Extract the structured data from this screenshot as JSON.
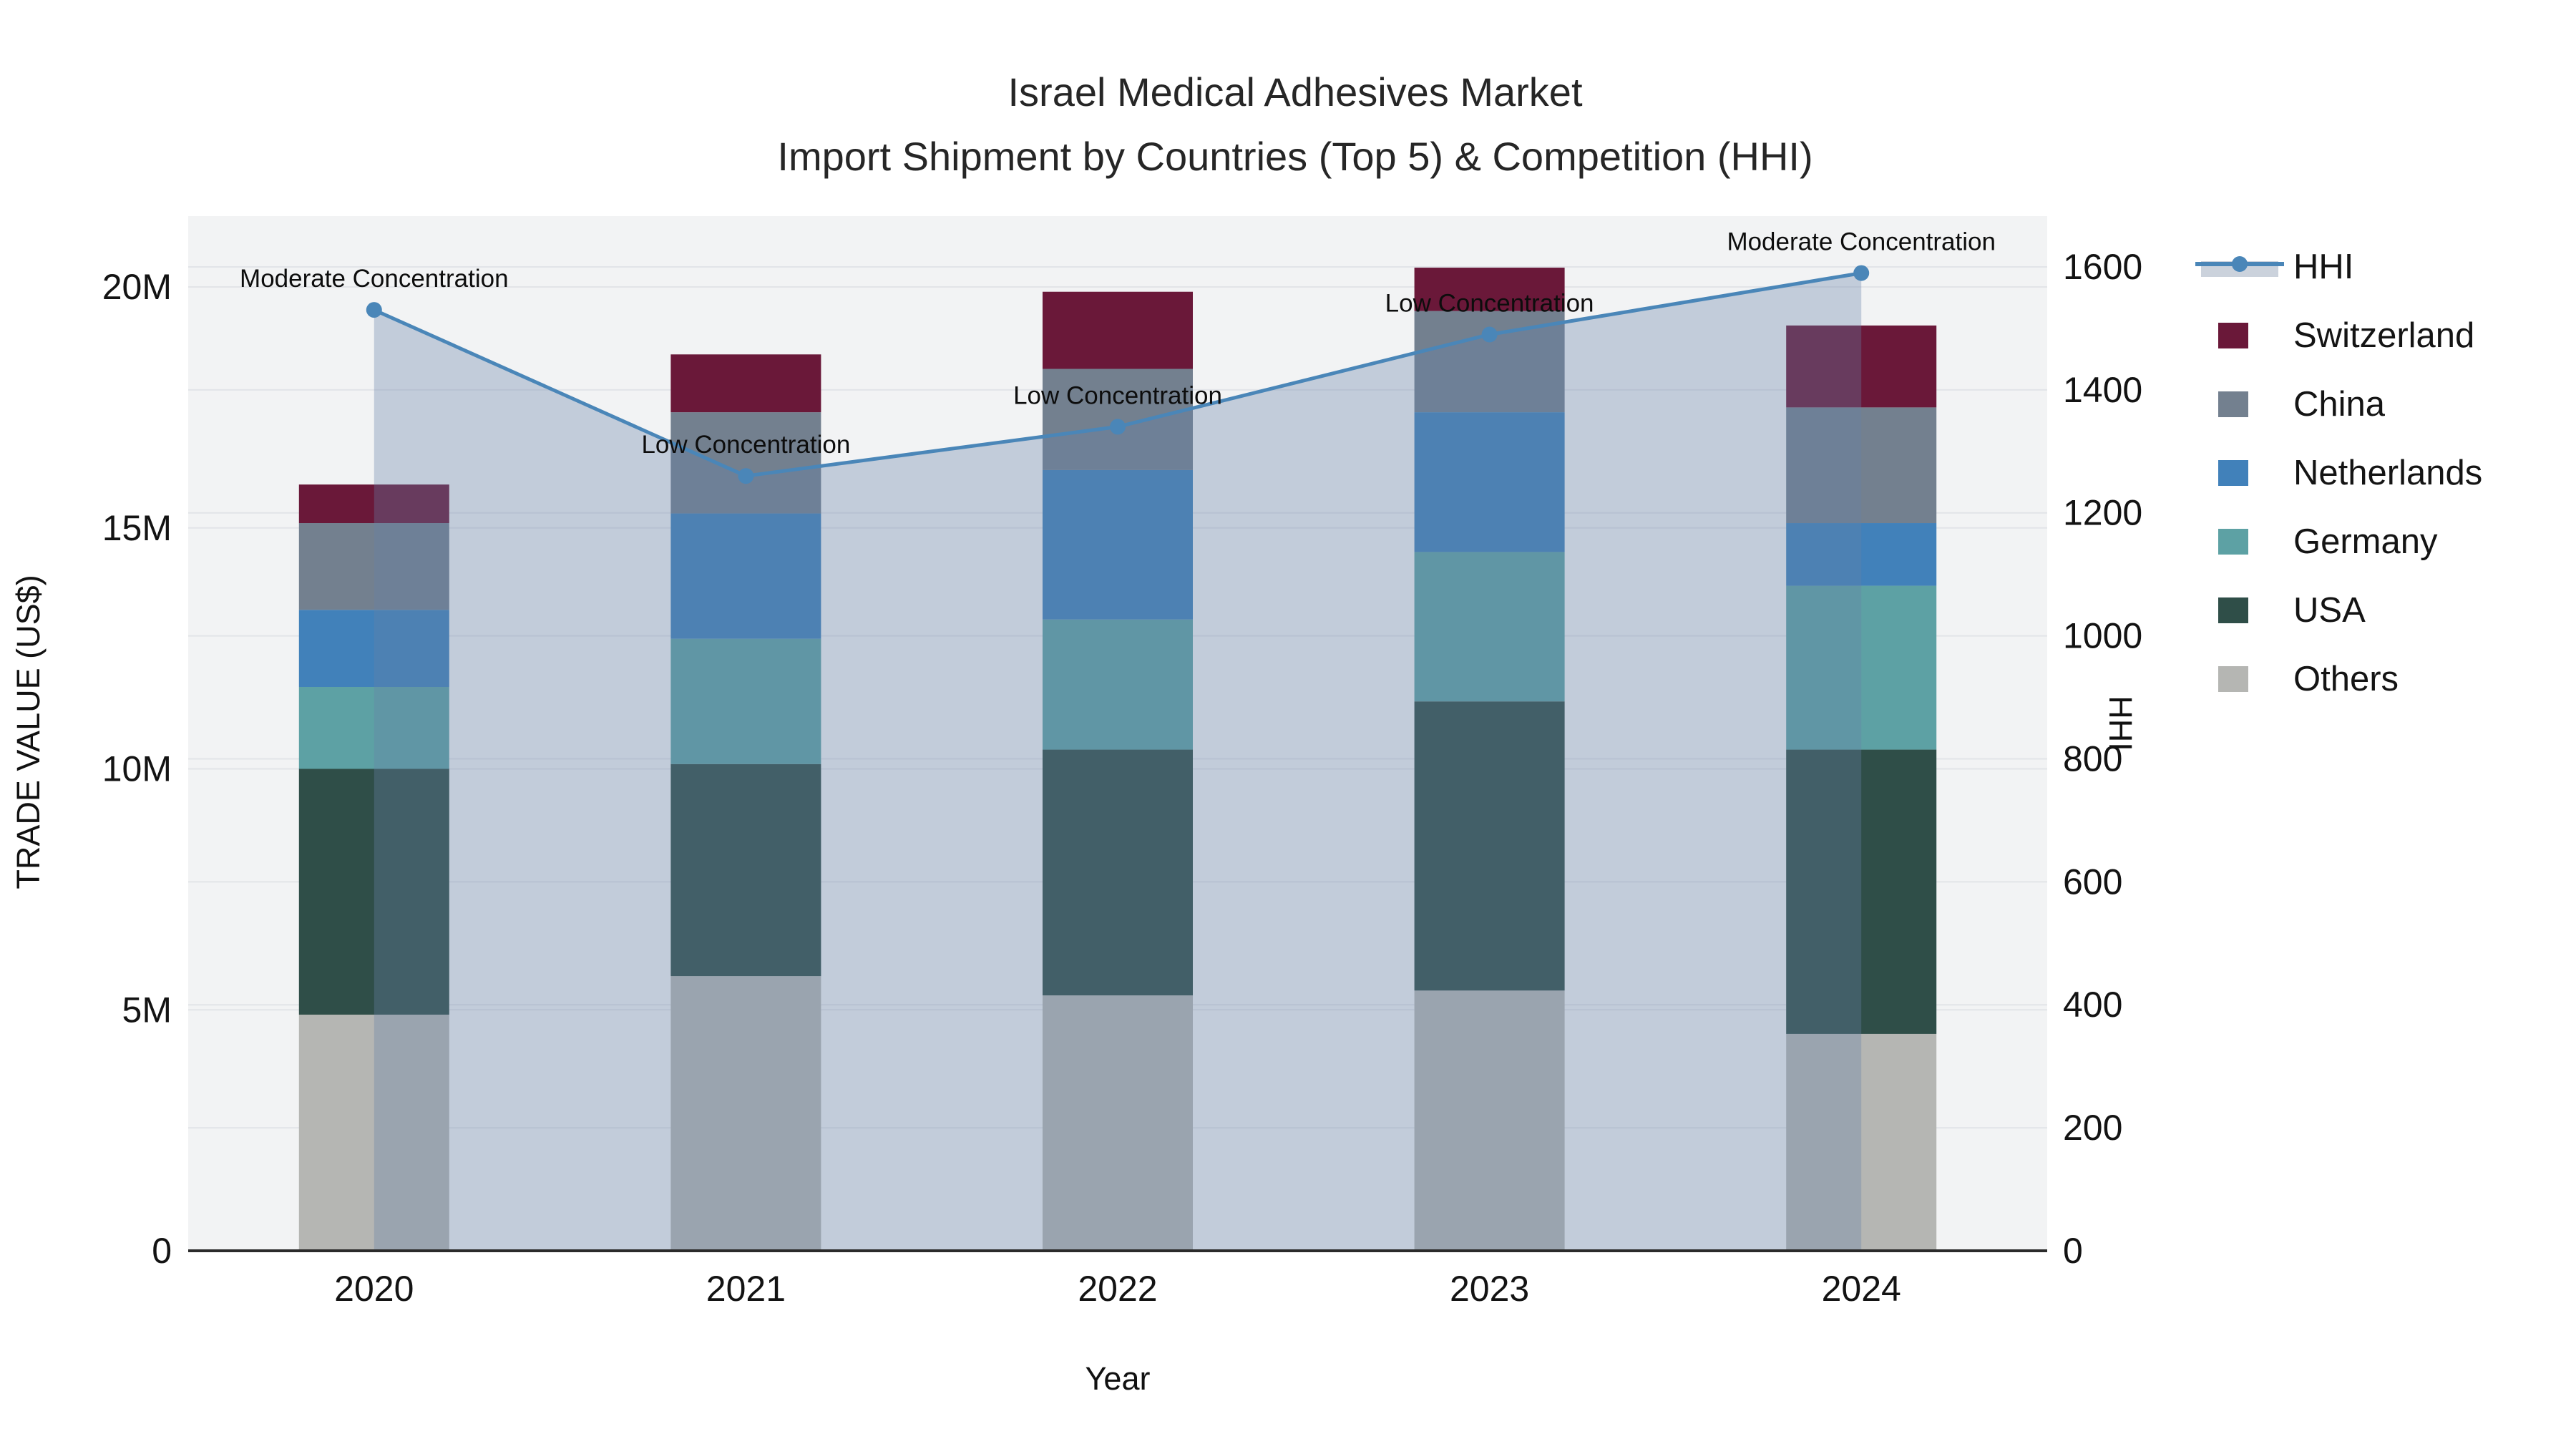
{
  "title": {
    "line1": "Israel Medical Adhesives Market",
    "line2": "Import Shipment by Countries (Top 5) & Competition (HHI)"
  },
  "axes": {
    "x_title": "Year",
    "y_left_title": "TRADE VALUE (US$)",
    "y_right_title": "HHI",
    "x_ticks": [
      "2020",
      "2021",
      "2022",
      "2023",
      "2024"
    ],
    "y_left_ticks": [
      "0",
      "5M",
      "10M",
      "15M",
      "20M"
    ],
    "y_left_tick_values": [
      0,
      5,
      10,
      15,
      20
    ],
    "y_right_ticks": [
      "0",
      "200",
      "400",
      "600",
      "800",
      "1000",
      "1200",
      "1400",
      "1600"
    ],
    "y_right_tick_values": [
      0,
      200,
      400,
      600,
      800,
      1000,
      1200,
      1400,
      1600
    ]
  },
  "legend": {
    "items": [
      {
        "label": "HHI",
        "type": "line",
        "color": "#4A86B8"
      },
      {
        "label": "Switzerland",
        "type": "swatch",
        "color": "#6A1839"
      },
      {
        "label": "China",
        "type": "swatch",
        "color": "#73808F"
      },
      {
        "label": "Netherlands",
        "type": "swatch",
        "color": "#4181BA"
      },
      {
        "label": "Germany",
        "type": "swatch",
        "color": "#5DA1A4"
      },
      {
        "label": "USA",
        "type": "swatch",
        "color": "#2F4E48"
      },
      {
        "label": "Others",
        "type": "swatch",
        "color": "#B5B6B3"
      }
    ]
  },
  "chart_data": {
    "type": "bar",
    "subtype": "stacked-bar-with-line",
    "title": "Israel Medical Adhesives Market — Import Shipment by Countries (Top 5) & Competition (HHI)",
    "xlabel": "Year",
    "ylabel_left": "TRADE VALUE (US$)",
    "ylabel_right": "HHI",
    "categories": [
      "2020",
      "2021",
      "2022",
      "2023",
      "2024"
    ],
    "unit": "million US$",
    "ylim_left_millions": [
      0,
      21.5
    ],
    "ylim_right_hhi": [
      0,
      1683
    ],
    "grid": true,
    "legend_position": "right",
    "stack_order_bottom_to_top": [
      "Others",
      "USA",
      "Germany",
      "Netherlands",
      "China",
      "Switzerland"
    ],
    "series": [
      {
        "name": "Others",
        "color": "#B5B6B3",
        "values_millions": [
          4.9,
          5.7,
          5.3,
          5.4,
          4.5
        ]
      },
      {
        "name": "USA",
        "color": "#2F4E48",
        "values_millions": [
          5.1,
          4.4,
          5.1,
          6.0,
          5.9
        ]
      },
      {
        "name": "Germany",
        "color": "#5DA1A4",
        "values_millions": [
          1.7,
          2.6,
          2.7,
          3.1,
          3.4
        ]
      },
      {
        "name": "Netherlands",
        "color": "#4181BA",
        "values_millions": [
          1.6,
          2.6,
          3.1,
          2.9,
          1.3
        ]
      },
      {
        "name": "China",
        "color": "#73808F",
        "values_millions": [
          1.8,
          2.1,
          2.1,
          2.1,
          2.4
        ]
      },
      {
        "name": "Switzerland",
        "color": "#6A1839",
        "values_millions": [
          0.8,
          1.2,
          1.6,
          0.9,
          1.7
        ]
      }
    ],
    "bar_totals_millions": [
      15.9,
      18.6,
      19.9,
      20.4,
      19.2
    ],
    "line_series": {
      "name": "HHI",
      "color": "#4A86B8",
      "fill_color_rgba": "rgba(104,128,166,0.34)",
      "values": [
        1530,
        1260,
        1340,
        1490,
        1590
      ]
    },
    "annotations": [
      {
        "year": "2020",
        "text": "Moderate Concentration"
      },
      {
        "year": "2021",
        "text": "Low Concentration"
      },
      {
        "year": "2022",
        "text": "Low Concentration"
      },
      {
        "year": "2023",
        "text": "Low Concentration"
      },
      {
        "year": "2024",
        "text": "Moderate Concentration"
      }
    ]
  },
  "colors": {
    "plot_background": "#F2F3F4",
    "outer_background": "#FFFFFF",
    "gridline": "#E2E4E8",
    "axis_line": "#2B2B2B",
    "hhi_line": "#4A86B8",
    "hhi_fill_swatch": "#CBD2DC",
    "text": "#131313"
  }
}
